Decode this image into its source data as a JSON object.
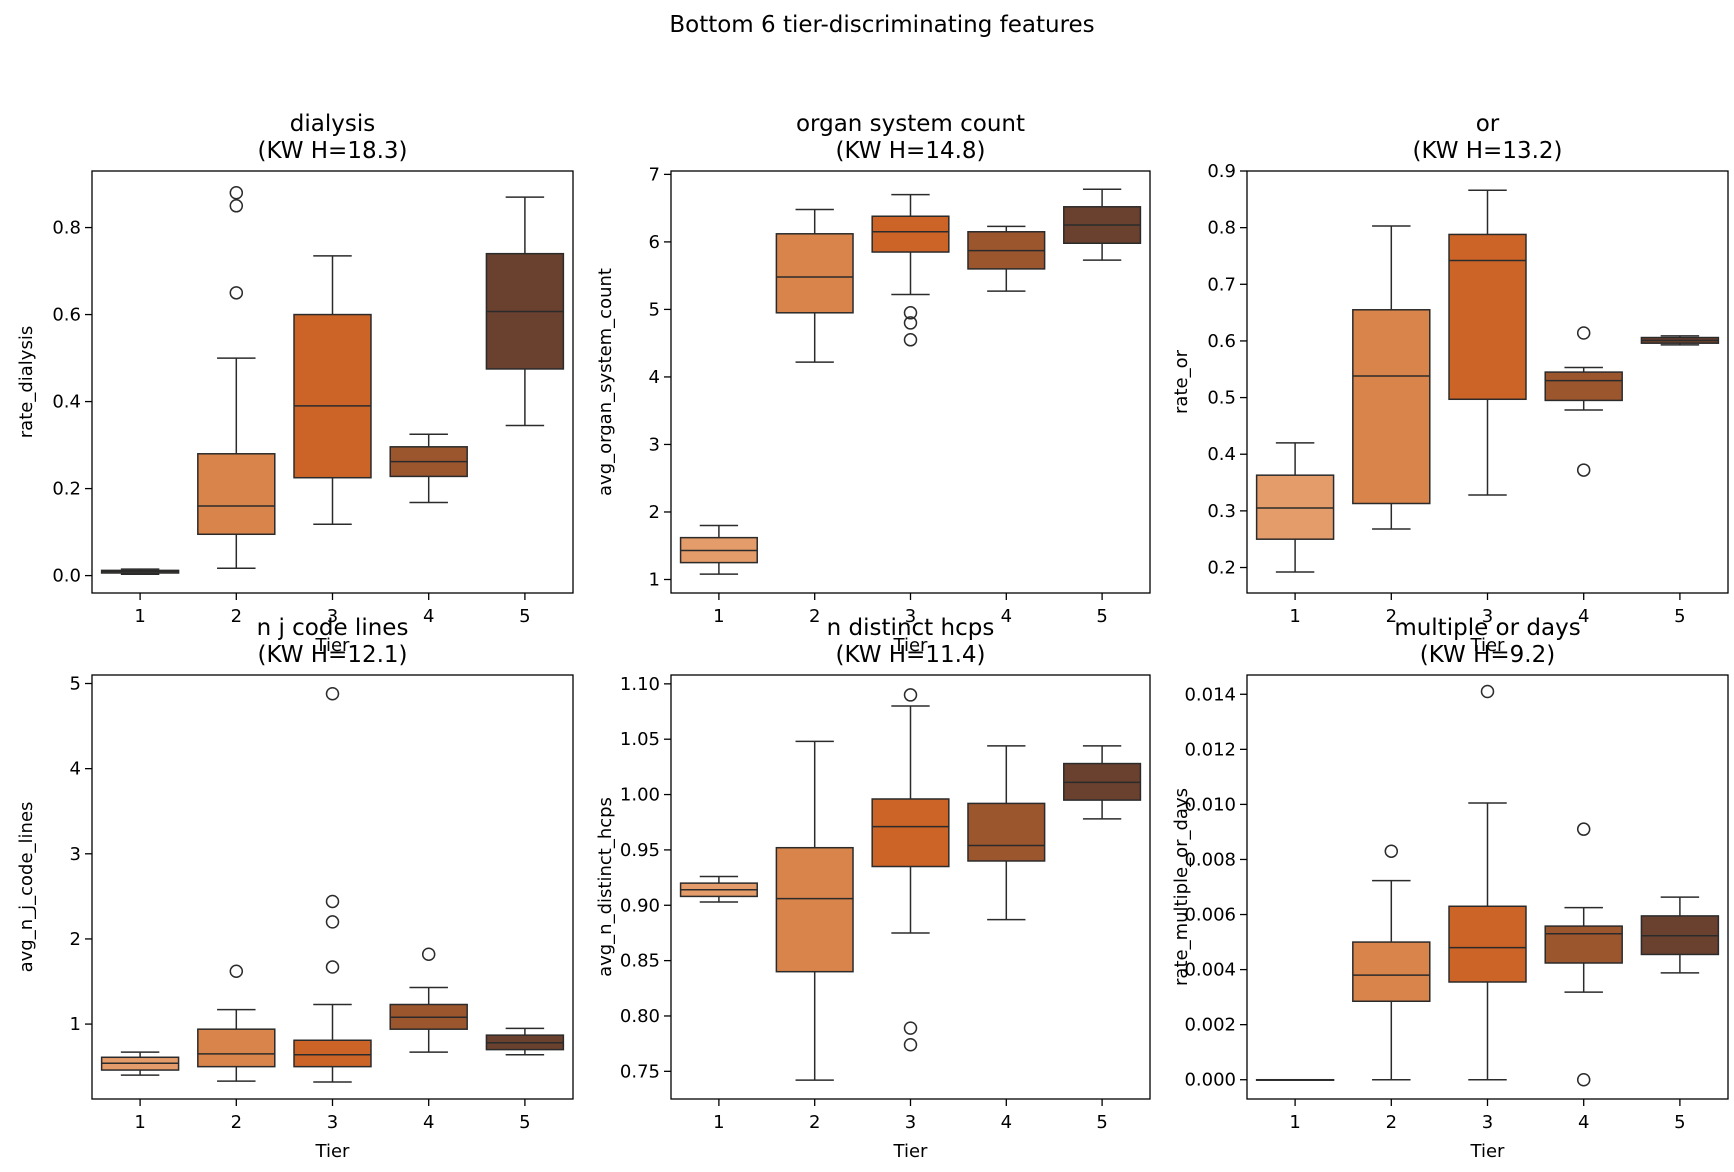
{
  "title": "Bottom 6 tier-discriminating features",
  "colors": {
    "tier1": "#e59c6b",
    "tier2": "#d9844a",
    "tier3": "#cd6427",
    "tier4": "#9c562e",
    "tier5": "#6a412e",
    "outline": "#2b2b2b"
  },
  "chart_data": [
    {
      "type": "box",
      "title": "dialysis\n(KW H=18.3)",
      "xlabel": "Tier",
      "ylabel": "rate_dialysis",
      "categories": [
        "1",
        "2",
        "3",
        "4",
        "5"
      ],
      "ylim": [
        -0.04,
        0.93
      ],
      "yticks": [
        0.0,
        0.2,
        0.4,
        0.6,
        0.8
      ],
      "ytick_labels": [
        "0.0",
        "0.2",
        "0.4",
        "0.6",
        "0.8"
      ],
      "boxes": [
        {
          "low": 0.003,
          "q1": 0.006,
          "median": 0.009,
          "q3": 0.012,
          "high": 0.015,
          "outliers": []
        },
        {
          "low": 0.017,
          "q1": 0.095,
          "median": 0.16,
          "q3": 0.28,
          "high": 0.5,
          "outliers": [
            0.65,
            0.85,
            0.88
          ]
        },
        {
          "low": 0.118,
          "q1": 0.225,
          "median": 0.39,
          "q3": 0.6,
          "high": 0.735,
          "outliers": []
        },
        {
          "low": 0.168,
          "q1": 0.228,
          "median": 0.262,
          "q3": 0.296,
          "high": 0.325,
          "outliers": []
        },
        {
          "low": 0.345,
          "q1": 0.475,
          "median": 0.607,
          "q3": 0.74,
          "high": 0.87,
          "outliers": []
        }
      ]
    },
    {
      "type": "box",
      "title": "organ system count\n(KW H=14.8)",
      "xlabel": "Tier",
      "ylabel": "avg_organ_system_count",
      "categories": [
        "1",
        "2",
        "3",
        "4",
        "5"
      ],
      "ylim": [
        0.8,
        7.05
      ],
      "yticks": [
        1,
        2,
        3,
        4,
        5,
        6,
        7
      ],
      "ytick_labels": [
        "1",
        "2",
        "3",
        "4",
        "5",
        "6",
        "7"
      ],
      "boxes": [
        {
          "low": 1.08,
          "q1": 1.25,
          "median": 1.43,
          "q3": 1.62,
          "high": 1.8,
          "outliers": []
        },
        {
          "low": 4.22,
          "q1": 4.95,
          "median": 5.48,
          "q3": 6.12,
          "high": 6.48,
          "outliers": []
        },
        {
          "low": 5.22,
          "q1": 5.85,
          "median": 6.15,
          "q3": 6.38,
          "high": 6.7,
          "outliers": [
            4.55,
            4.8,
            4.95
          ]
        },
        {
          "low": 5.27,
          "q1": 5.6,
          "median": 5.87,
          "q3": 6.15,
          "high": 6.23,
          "outliers": []
        },
        {
          "low": 5.73,
          "q1": 5.98,
          "median": 6.25,
          "q3": 6.52,
          "high": 6.78,
          "outliers": []
        }
      ]
    },
    {
      "type": "box",
      "title": "or\n(KW H=13.2)",
      "xlabel": "Tier",
      "ylabel": "rate_or",
      "categories": [
        "1",
        "2",
        "3",
        "4",
        "5"
      ],
      "ylim": [
        0.155,
        0.9
      ],
      "yticks": [
        0.2,
        0.3,
        0.4,
        0.5,
        0.6,
        0.7,
        0.8,
        0.9
      ],
      "ytick_labels": [
        "0.2",
        "0.3",
        "0.4",
        "0.5",
        "0.6",
        "0.7",
        "0.8",
        "0.9"
      ],
      "boxes": [
        {
          "low": 0.192,
          "q1": 0.25,
          "median": 0.305,
          "q3": 0.363,
          "high": 0.42,
          "outliers": []
        },
        {
          "low": 0.268,
          "q1": 0.313,
          "median": 0.538,
          "q3": 0.655,
          "high": 0.803,
          "outliers": []
        },
        {
          "low": 0.328,
          "q1": 0.497,
          "median": 0.742,
          "q3": 0.788,
          "high": 0.866,
          "outliers": []
        },
        {
          "low": 0.478,
          "q1": 0.495,
          "median": 0.53,
          "q3": 0.545,
          "high": 0.553,
          "outliers": [
            0.372,
            0.614
          ]
        },
        {
          "low": 0.593,
          "q1": 0.596,
          "median": 0.601,
          "q3": 0.606,
          "high": 0.609,
          "outliers": []
        }
      ]
    },
    {
      "type": "box",
      "title": "n j code lines\n(KW H=12.1)",
      "xlabel": "Tier",
      "ylabel": "avg_n_j_code_lines",
      "categories": [
        "1",
        "2",
        "3",
        "4",
        "5"
      ],
      "ylim": [
        0.12,
        5.1
      ],
      "yticks": [
        1,
        2,
        3,
        4,
        5
      ],
      "ytick_labels": [
        "1",
        "2",
        "3",
        "4",
        "5"
      ],
      "boxes": [
        {
          "low": 0.4,
          "q1": 0.46,
          "median": 0.54,
          "q3": 0.61,
          "high": 0.67,
          "outliers": []
        },
        {
          "low": 0.33,
          "q1": 0.5,
          "median": 0.65,
          "q3": 0.94,
          "high": 1.17,
          "outliers": [
            1.62
          ]
        },
        {
          "low": 0.32,
          "q1": 0.5,
          "median": 0.64,
          "q3": 0.81,
          "high": 1.23,
          "outliers": [
            1.67,
            2.2,
            2.44,
            4.88
          ]
        },
        {
          "low": 0.67,
          "q1": 0.94,
          "median": 1.08,
          "q3": 1.23,
          "high": 1.43,
          "outliers": [
            1.82
          ]
        },
        {
          "low": 0.64,
          "q1": 0.7,
          "median": 0.78,
          "q3": 0.87,
          "high": 0.95,
          "outliers": []
        }
      ]
    },
    {
      "type": "box",
      "title": "n distinct hcps\n(KW H=11.4)",
      "xlabel": "Tier",
      "ylabel": "avg_n_distinct_hcps",
      "categories": [
        "1",
        "2",
        "3",
        "4",
        "5"
      ],
      "ylim": [
        0.725,
        1.108
      ],
      "yticks": [
        0.75,
        0.8,
        0.85,
        0.9,
        0.95,
        1.0,
        1.05,
        1.1
      ],
      "ytick_labels": [
        "0.75",
        "0.80",
        "0.85",
        "0.90",
        "0.95",
        "1.00",
        "1.05",
        "1.10"
      ],
      "boxes": [
        {
          "low": 0.903,
          "q1": 0.908,
          "median": 0.914,
          "q3": 0.92,
          "high": 0.926,
          "outliers": []
        },
        {
          "low": 0.742,
          "q1": 0.84,
          "median": 0.906,
          "q3": 0.952,
          "high": 1.048,
          "outliers": []
        },
        {
          "low": 0.875,
          "q1": 0.935,
          "median": 0.971,
          "q3": 0.996,
          "high": 1.08,
          "outliers": [
            0.774,
            0.789,
            1.09
          ]
        },
        {
          "low": 0.887,
          "q1": 0.94,
          "median": 0.954,
          "q3": 0.992,
          "high": 1.044,
          "outliers": []
        },
        {
          "low": 0.978,
          "q1": 0.995,
          "median": 1.011,
          "q3": 1.028,
          "high": 1.044,
          "outliers": []
        }
      ]
    },
    {
      "type": "box",
      "title": "multiple or days\n(KW H=9.2)",
      "xlabel": "Tier",
      "ylabel": "rate_multiple_or_days",
      "categories": [
        "1",
        "2",
        "3",
        "4",
        "5"
      ],
      "ylim": [
        -0.0007,
        0.0147
      ],
      "yticks": [
        0.0,
        0.002,
        0.004,
        0.006,
        0.008,
        0.01,
        0.012,
        0.014
      ],
      "ytick_labels": [
        "0.000",
        "0.002",
        "0.004",
        "0.006",
        "0.008",
        "0.010",
        "0.012",
        "0.014"
      ],
      "boxes": [
        {
          "low": 0.0,
          "q1": 0.0,
          "median": 0.0,
          "q3": 0.0,
          "high": 0.0,
          "outliers": []
        },
        {
          "low": 0.0,
          "q1": 0.00285,
          "median": 0.0038,
          "q3": 0.005,
          "high": 0.00723,
          "outliers": [
            0.0083
          ]
        },
        {
          "low": 0.0,
          "q1": 0.00355,
          "median": 0.0048,
          "q3": 0.0063,
          "high": 0.01005,
          "outliers": [
            0.0141
          ]
        },
        {
          "low": 0.00318,
          "q1": 0.00424,
          "median": 0.0053,
          "q3": 0.00558,
          "high": 0.00625,
          "outliers": [
            0.0,
            0.0091
          ]
        },
        {
          "low": 0.00388,
          "q1": 0.00455,
          "median": 0.00523,
          "q3": 0.00595,
          "high": 0.00663,
          "outliers": []
        }
      ]
    }
  ]
}
